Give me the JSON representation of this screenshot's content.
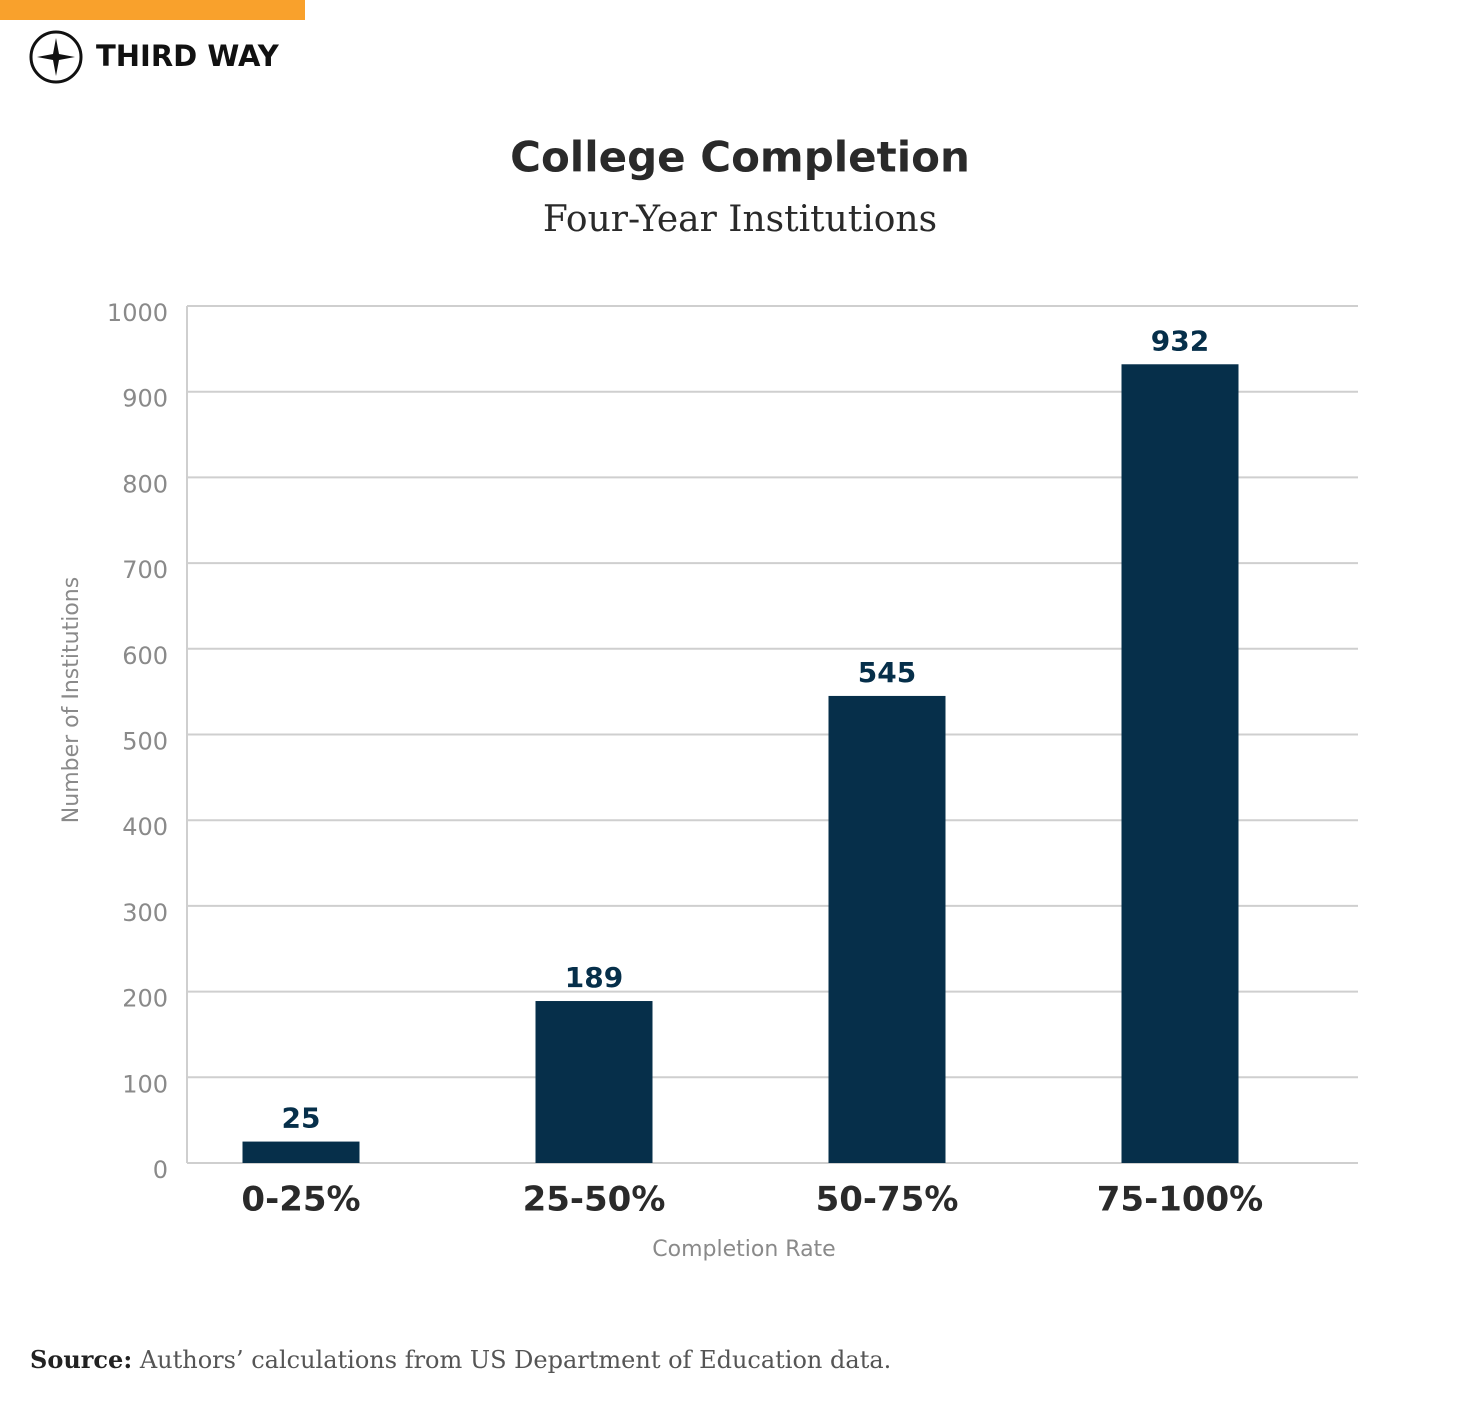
{
  "logo": "THIRD WAY",
  "chart_data": {
    "type": "bar",
    "title": "College Completion",
    "subtitle": "Four-Year Institutions",
    "categories": [
      "0-25%",
      "25-50%",
      "50-75%",
      "75-100%"
    ],
    "values": [
      25,
      189,
      545,
      932
    ],
    "color": "#062f4a",
    "x_label": "Completion Rate",
    "y_label": "Number of Institutions",
    "ylim": [
      0,
      1000
    ],
    "yticks": [
      0,
      100,
      200,
      300,
      400,
      500,
      600,
      700,
      800,
      900,
      1000
    ],
    "grid": true
  },
  "source": {
    "label": "Source:",
    "text": "Authors’ calculations from US Department of Education data."
  }
}
